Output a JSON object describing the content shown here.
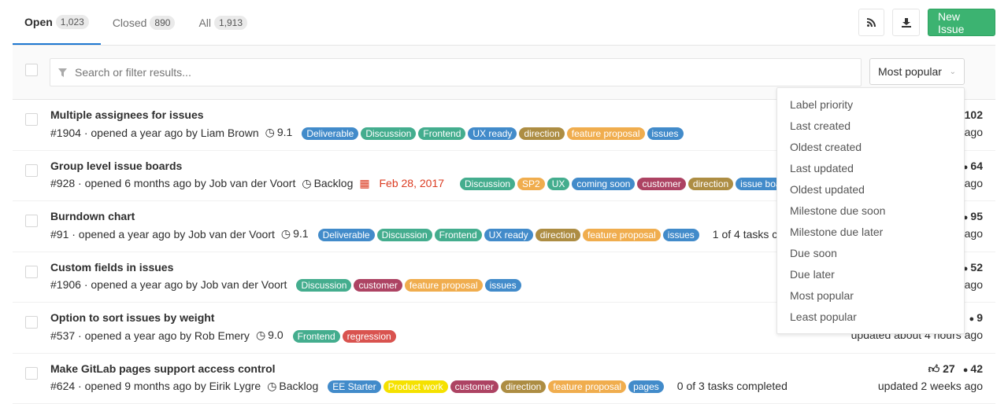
{
  "tabs": [
    {
      "label": "Open",
      "count": "1,023"
    },
    {
      "label": "Closed",
      "count": "890"
    },
    {
      "label": "All",
      "count": "1,913"
    }
  ],
  "toolbar": {
    "rss_icon": "rss-icon",
    "download_icon": "download-icon",
    "new_issue": "New Issue",
    "new_issue_color": "#3cb371"
  },
  "filter": {
    "placeholder": "Search or filter results...",
    "sort_selected": "Most popular"
  },
  "sort_menu": [
    "Label priority",
    "Last created",
    "Oldest created",
    "Last updated",
    "Oldest updated",
    "Milestone due soon",
    "Milestone due later",
    "Due soon",
    "Due later",
    "Most popular",
    "Least popular"
  ],
  "label_colors": {
    "Deliverable": "#428bca",
    "Discussion": "#44ad8e",
    "Frontend": "#44ad8e",
    "UX ready": "#428bca",
    "direction": "#ad8d43",
    "feature proposal": "#f0ad4e",
    "issues": "#428bca",
    "SP2": "#f0ad4e",
    "UX": "#44ad8e",
    "coming soon": "#428bca",
    "customer": "#ad4363",
    "issue boards": "#428bca",
    "regression": "#d9534f",
    "EE Starter": "#428bca",
    "Product work": "#f5e100",
    "pages": "#428bca"
  },
  "issues": [
    {
      "title": "Multiple assignees for issues",
      "ref": "#1904 · opened a year ago by Liam Brown",
      "milestone": "9.1",
      "labels": [
        "Deliverable",
        "Discussion",
        "Frontend",
        "UX ready",
        "direction",
        "feature proposal",
        "issues"
      ],
      "comments": "102",
      "updated": "ago"
    },
    {
      "title": "Group level issue boards",
      "ref": "#928 · opened 6 months ago by Job van der Voort",
      "milestone": "Backlog",
      "due": "Feb 28, 2017",
      "labels": [
        "Discussion",
        "SP2",
        "UX",
        "coming soon",
        "customer",
        "direction",
        "issue boards"
      ],
      "comments": "64",
      "updated": "ago"
    },
    {
      "title": "Burndown chart",
      "ref": "#91 · opened a year ago by Job van der Voort",
      "milestone": "9.1",
      "labels": [
        "Deliverable",
        "Discussion",
        "Frontend",
        "UX ready",
        "direction",
        "feature proposal",
        "issues"
      ],
      "tasks": "1 of 4 tasks completed",
      "comments": "95",
      "updated": "ago"
    },
    {
      "title": "Custom fields in issues",
      "ref": "#1906 · opened a year ago by Job van der Voort",
      "labels": [
        "Discussion",
        "customer",
        "feature proposal",
        "issues"
      ],
      "comments": "52",
      "updated": "ago"
    },
    {
      "title": "Option to sort issues by weight",
      "ref": "#537 · opened a year ago by Rob Emery",
      "milestone": "9.0",
      "labels": [
        "Frontend",
        "regression"
      ],
      "comments": "9",
      "updated": "updated about 4 hours ago"
    },
    {
      "title": "Make GitLab pages support access control",
      "ref": "#624 · opened 9 months ago by Eirik Lygre",
      "milestone": "Backlog",
      "labels": [
        "EE Starter",
        "Product work",
        "customer",
        "direction",
        "feature proposal",
        "pages"
      ],
      "tasks": "0 of 3 tasks completed",
      "upvotes": "27",
      "comments": "42",
      "updated": "updated 2 weeks ago"
    }
  ]
}
